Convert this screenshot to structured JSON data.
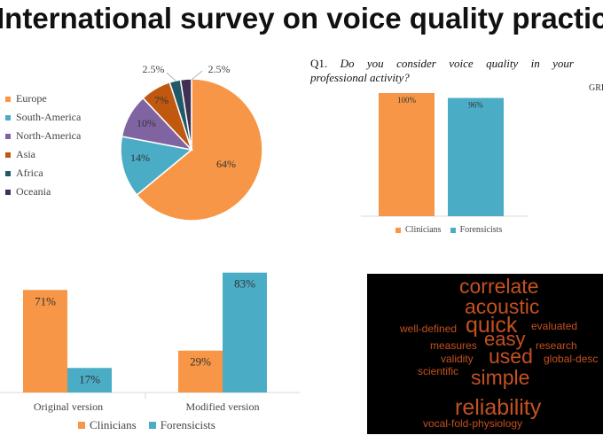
{
  "title": "International survey on voice quality practic",
  "colors": {
    "europe": "#f79646",
    "south_america": "#4bacc6",
    "north_america": "#8064a2",
    "asia": "#c0580f",
    "africa": "#215968",
    "oceania": "#403152",
    "cloud_text": "#c4511f"
  },
  "question1": {
    "prefix": "Q1.",
    "line1": "Do you consider voice quality in your",
    "line2": "professional activity?"
  },
  "group_label": "GRE",
  "chart_data": [
    {
      "type": "pie",
      "categories": [
        "Europe",
        "South-America",
        "North-America",
        "Asia",
        "Africa",
        "Oceania"
      ],
      "values": [
        64,
        14,
        10,
        7,
        2.5,
        2.5
      ],
      "labels": [
        "64%",
        "14%",
        "10%",
        "7%",
        "2.5%",
        "2.5%"
      ],
      "legend": "left"
    },
    {
      "type": "bar",
      "categories": [
        "Clinicians",
        "Forensicists"
      ],
      "values": [
        100,
        96
      ],
      "labels": [
        "100%",
        "96%"
      ],
      "legend": "bottom"
    },
    {
      "type": "bar",
      "categories": [
        "Original version",
        "Modified version"
      ],
      "series": [
        {
          "name": "Clinicians",
          "values": [
            71,
            29
          ],
          "labels": [
            "71%",
            "29%"
          ]
        },
        {
          "name": "Forensicists",
          "values": [
            17,
            83
          ],
          "labels": [
            "17%",
            "83%"
          ]
        }
      ],
      "legend": "bottom"
    }
  ],
  "word_cloud": [
    {
      "word": "correlate",
      "size": 23
    },
    {
      "word": "acoustic",
      "size": 23
    },
    {
      "word": "well-defined",
      "size": 12
    },
    {
      "word": "quick",
      "size": 25
    },
    {
      "word": "evaluated",
      "size": 12
    },
    {
      "word": "easy",
      "size": 22
    },
    {
      "word": "measures",
      "size": 12
    },
    {
      "word": "research",
      "size": 12
    },
    {
      "word": "validity",
      "size": 12
    },
    {
      "word": "used",
      "size": 23
    },
    {
      "word": "global-desc",
      "size": 12
    },
    {
      "word": "scientific",
      "size": 12
    },
    {
      "word": "simple",
      "size": 23
    },
    {
      "word": "reliability",
      "size": 25
    },
    {
      "word": "vocal-fold-physiology",
      "size": 12
    }
  ]
}
